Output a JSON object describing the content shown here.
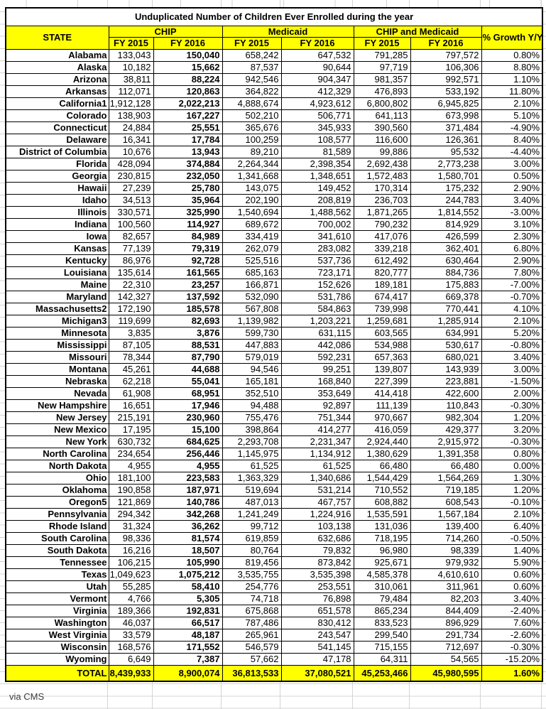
{
  "colors": {
    "highlight": "#ffff00",
    "border": "#000000",
    "gridline": "#d4d4d4"
  },
  "header": {
    "state": "STATE",
    "chip": "CHIP",
    "medicaid": "Medicaid",
    "chip_medicaid": "CHIP and Medicaid",
    "growth": "% Growth Y/Y",
    "fy2015": "FY 2015",
    "fy2016": "FY 2016"
  },
  "total_label": "TOTAL",
  "footer_note": "via CMS",
  "chart_data": {
    "type": "table",
    "title": "Unduplicated Number of Children Ever Enrolled during the year",
    "columns": [
      "STATE",
      "CHIP FY 2015",
      "CHIP FY 2016",
      "Medicaid FY 2015",
      "Medicaid FY 2016",
      "CHIP and Medicaid FY 2015",
      "CHIP and Medicaid FY 2016",
      "% Growth Y/Y"
    ],
    "rows": [
      {
        "state": "Alabama",
        "values": [
          "133,043",
          "150,040",
          "658,242",
          "647,532",
          "791,285",
          "797,572",
          "0.80%"
        ]
      },
      {
        "state": "Alaska",
        "values": [
          "10,182",
          "15,662",
          "87,537",
          "90,644",
          "97,719",
          "106,306",
          "8.80%"
        ]
      },
      {
        "state": "Arizona",
        "values": [
          "38,811",
          "88,224",
          "942,546",
          "904,347",
          "981,357",
          "992,571",
          "1.10%"
        ]
      },
      {
        "state": "Arkansas",
        "values": [
          "112,071",
          "120,863",
          "364,822",
          "412,329",
          "476,893",
          "533,192",
          "11.80%"
        ]
      },
      {
        "state": "California1",
        "values": [
          "1,912,128",
          "2,022,213",
          "4,888,674",
          "4,923,612",
          "6,800,802",
          "6,945,825",
          "2.10%"
        ]
      },
      {
        "state": "Colorado",
        "values": [
          "138,903",
          "167,227",
          "502,210",
          "506,771",
          "641,113",
          "673,998",
          "5.10%"
        ]
      },
      {
        "state": "Connecticut",
        "values": [
          "24,884",
          "25,551",
          "365,676",
          "345,933",
          "390,560",
          "371,484",
          "-4.90%"
        ]
      },
      {
        "state": "Delaware",
        "values": [
          "16,341",
          "17,784",
          "100,259",
          "108,577",
          "116,600",
          "126,361",
          "8.40%"
        ]
      },
      {
        "state": "District of Columbia",
        "values": [
          "10,676",
          "13,943",
          "89,210",
          "81,589",
          "99,886",
          "95,532",
          "-4.40%"
        ]
      },
      {
        "state": "Florida",
        "values": [
          "428,094",
          "374,884",
          "2,264,344",
          "2,398,354",
          "2,692,438",
          "2,773,238",
          "3.00%"
        ]
      },
      {
        "state": "Georgia",
        "values": [
          "230,815",
          "232,050",
          "1,341,668",
          "1,348,651",
          "1,572,483",
          "1,580,701",
          "0.50%"
        ]
      },
      {
        "state": "Hawaii",
        "values": [
          "27,239",
          "25,780",
          "143,075",
          "149,452",
          "170,314",
          "175,232",
          "2.90%"
        ]
      },
      {
        "state": "Idaho",
        "values": [
          "34,513",
          "35,964",
          "202,190",
          "208,819",
          "236,703",
          "244,783",
          "3.40%"
        ]
      },
      {
        "state": "Illinois",
        "values": [
          "330,571",
          "325,990",
          "1,540,694",
          "1,488,562",
          "1,871,265",
          "1,814,552",
          "-3.00%"
        ]
      },
      {
        "state": "Indiana",
        "values": [
          "100,560",
          "114,927",
          "689,672",
          "700,002",
          "790,232",
          "814,929",
          "3.10%"
        ]
      },
      {
        "state": "Iowa",
        "values": [
          "82,657",
          "84,989",
          "334,419",
          "341,610",
          "417,076",
          "426,599",
          "2.30%"
        ]
      },
      {
        "state": "Kansas",
        "values": [
          "77,139",
          "79,319",
          "262,079",
          "283,082",
          "339,218",
          "362,401",
          "6.80%"
        ]
      },
      {
        "state": "Kentucky",
        "values": [
          "86,976",
          "92,728",
          "525,516",
          "537,736",
          "612,492",
          "630,464",
          "2.90%"
        ]
      },
      {
        "state": "Louisiana",
        "values": [
          "135,614",
          "161,565",
          "685,163",
          "723,171",
          "820,777",
          "884,736",
          "7.80%"
        ]
      },
      {
        "state": "Maine",
        "values": [
          "22,310",
          "23,257",
          "166,871",
          "152,626",
          "189,181",
          "175,883",
          "-7.00%"
        ]
      },
      {
        "state": "Maryland",
        "values": [
          "142,327",
          "137,592",
          "532,090",
          "531,786",
          "674,417",
          "669,378",
          "-0.70%"
        ]
      },
      {
        "state": "Massachusetts2",
        "values": [
          "172,190",
          "185,578",
          "567,808",
          "584,863",
          "739,998",
          "770,441",
          "4.10%"
        ]
      },
      {
        "state": "Michigan3",
        "values": [
          "119,699",
          "82,693",
          "1,139,982",
          "1,203,221",
          "1,259,681",
          "1,285,914",
          "2.10%"
        ]
      },
      {
        "state": "Minnesota",
        "values": [
          "3,835",
          "3,876",
          "599,730",
          "631,115",
          "603,565",
          "634,991",
          "5.20%"
        ]
      },
      {
        "state": "Mississippi",
        "values": [
          "87,105",
          "88,531",
          "447,883",
          "442,086",
          "534,988",
          "530,617",
          "-0.80%"
        ]
      },
      {
        "state": "Missouri",
        "values": [
          "78,344",
          "87,790",
          "579,019",
          "592,231",
          "657,363",
          "680,021",
          "3.40%"
        ]
      },
      {
        "state": "Montana",
        "values": [
          "45,261",
          "44,688",
          "94,546",
          "99,251",
          "139,807",
          "143,939",
          "3.00%"
        ]
      },
      {
        "state": "Nebraska",
        "values": [
          "62,218",
          "55,041",
          "165,181",
          "168,840",
          "227,399",
          "223,881",
          "-1.50%"
        ]
      },
      {
        "state": "Nevada",
        "values": [
          "61,908",
          "68,951",
          "352,510",
          "353,649",
          "414,418",
          "422,600",
          "2.00%"
        ]
      },
      {
        "state": "New Hampshire",
        "values": [
          "16,651",
          "17,946",
          "94,488",
          "92,897",
          "111,139",
          "110,843",
          "-0.30%"
        ]
      },
      {
        "state": "New Jersey",
        "values": [
          "215,191",
          "230,960",
          "755,476",
          "751,344",
          "970,667",
          "982,304",
          "1.20%"
        ]
      },
      {
        "state": "New Mexico",
        "values": [
          "17,195",
          "15,100",
          "398,864",
          "414,277",
          "416,059",
          "429,377",
          "3.20%"
        ]
      },
      {
        "state": "New York",
        "values": [
          "630,732",
          "684,625",
          "2,293,708",
          "2,231,347",
          "2,924,440",
          "2,915,972",
          "-0.30%"
        ]
      },
      {
        "state": "North Carolina",
        "values": [
          "234,654",
          "256,446",
          "1,145,975",
          "1,134,912",
          "1,380,629",
          "1,391,358",
          "0.80%"
        ]
      },
      {
        "state": "North Dakota",
        "values": [
          "4,955",
          "4,955",
          "61,525",
          "61,525",
          "66,480",
          "66,480",
          "0.00%"
        ]
      },
      {
        "state": "Ohio",
        "values": [
          "181,100",
          "223,583",
          "1,363,329",
          "1,340,686",
          "1,544,429",
          "1,564,269",
          "1.30%"
        ]
      },
      {
        "state": "Oklahoma",
        "values": [
          "190,858",
          "187,971",
          "519,694",
          "531,214",
          "710,552",
          "719,185",
          "1.20%"
        ]
      },
      {
        "state": "Oregon5",
        "values": [
          "121,869",
          "140,786",
          "487,013",
          "467,757",
          "608,882",
          "608,543",
          "-0.10%"
        ]
      },
      {
        "state": "Pennsylvania",
        "values": [
          "294,342",
          "342,268",
          "1,241,249",
          "1,224,916",
          "1,535,591",
          "1,567,184",
          "2.10%"
        ]
      },
      {
        "state": "Rhode Island",
        "values": [
          "31,324",
          "36,262",
          "99,712",
          "103,138",
          "131,036",
          "139,400",
          "6.40%"
        ]
      },
      {
        "state": "South Carolina",
        "values": [
          "98,336",
          "81,574",
          "619,859",
          "632,686",
          "718,195",
          "714,260",
          "-0.50%"
        ]
      },
      {
        "state": "South Dakota",
        "values": [
          "16,216",
          "18,507",
          "80,764",
          "79,832",
          "96,980",
          "98,339",
          "1.40%"
        ]
      },
      {
        "state": "Tennessee",
        "values": [
          "106,215",
          "105,990",
          "819,456",
          "873,842",
          "925,671",
          "979,932",
          "5.90%"
        ]
      },
      {
        "state": "Texas",
        "values": [
          "1,049,623",
          "1,075,212",
          "3,535,755",
          "3,535,398",
          "4,585,378",
          "4,610,610",
          "0.60%"
        ]
      },
      {
        "state": "Utah",
        "values": [
          "55,285",
          "58,410",
          "254,776",
          "253,551",
          "310,061",
          "311,961",
          "0.60%"
        ]
      },
      {
        "state": "Vermont",
        "values": [
          "4,766",
          "5,305",
          "74,718",
          "76,898",
          "79,484",
          "82,203",
          "3.40%"
        ]
      },
      {
        "state": "Virginia",
        "values": [
          "189,366",
          "192,831",
          "675,868",
          "651,578",
          "865,234",
          "844,409",
          "-2.40%"
        ]
      },
      {
        "state": "Washington",
        "values": [
          "46,037",
          "66,517",
          "787,486",
          "830,412",
          "833,523",
          "896,929",
          "7.60%"
        ]
      },
      {
        "state": "West Virginia",
        "values": [
          "33,579",
          "48,187",
          "265,961",
          "243,547",
          "299,540",
          "291,734",
          "-2.60%"
        ]
      },
      {
        "state": "Wisconsin",
        "values": [
          "168,576",
          "171,552",
          "546,579",
          "541,145",
          "715,155",
          "712,697",
          "-0.30%"
        ]
      },
      {
        "state": "Wyoming",
        "values": [
          "6,649",
          "7,387",
          "57,662",
          "47,178",
          "64,311",
          "54,565",
          "-15.20%"
        ]
      }
    ],
    "total": [
      "8,439,933",
      "8,900,074",
      "36,813,533",
      "37,080,521",
      "45,253,466",
      "45,980,595",
      "1.60%"
    ]
  }
}
